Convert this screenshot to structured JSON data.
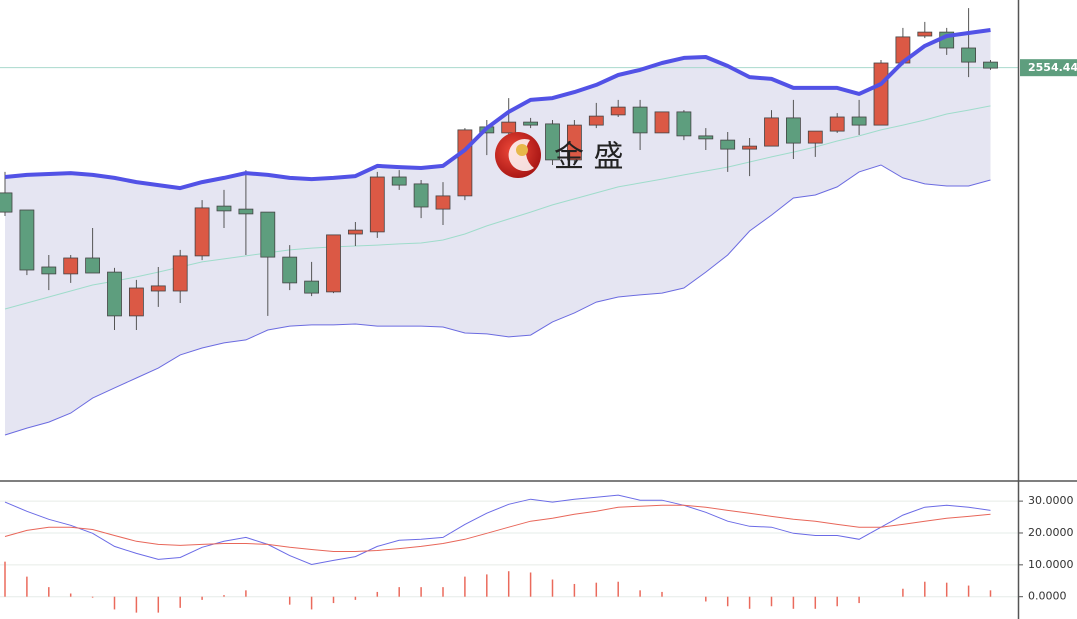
{
  "chart_data": [
    {
      "type": "candlestick",
      "open": [
        2512.7,
        2507.0,
        2488.0,
        2485.7,
        2491.0,
        2486.3,
        2471.7,
        2480.0,
        2480.0,
        2491.7,
        2508.3,
        2507.3,
        2506.3,
        2491.3,
        2483.3,
        2479.7,
        2499.0,
        2499.7,
        2518.0,
        2515.7,
        2507.3,
        2511.7,
        2534.7,
        2532.7,
        2536.3,
        2535.7,
        2523.7,
        2535.3,
        2538.7,
        2541.3,
        2532.7,
        2539.7,
        2531.7,
        2530.3,
        2527.3,
        2528.3,
        2537.7,
        2529.3,
        2533.3,
        2538.0,
        2535.3,
        2556.0,
        2565.0,
        2566.3,
        2561.0,
        2556.3
      ],
      "close": [
        2506.3,
        2487.0,
        2485.7,
        2491.0,
        2486.0,
        2471.7,
        2481.0,
        2481.7,
        2491.7,
        2507.7,
        2506.7,
        2505.7,
        2491.3,
        2482.7,
        2479.3,
        2498.7,
        2500.3,
        2518.0,
        2515.3,
        2508.0,
        2511.7,
        2533.7,
        2532.7,
        2536.3,
        2535.3,
        2523.7,
        2535.3,
        2538.3,
        2541.3,
        2532.7,
        2539.7,
        2531.7,
        2530.7,
        2527.3,
        2528.3,
        2537.7,
        2529.3,
        2533.3,
        2538.0,
        2535.3,
        2556.0,
        2564.7,
        2566.3,
        2561.0,
        2556.3,
        2554.3
      ],
      "high": [
        2519.7,
        2507.0,
        2492.0,
        2492.0,
        2501.0,
        2487.7,
        2483.7,
        2488.0,
        2493.7,
        2510.3,
        2513.7,
        2520.3,
        2506.3,
        2495.3,
        2489.7,
        2498.7,
        2503.0,
        2519.7,
        2520.3,
        2517.0,
        2516.3,
        2534.3,
        2537.0,
        2544.3,
        2537.7,
        2537.0,
        2537.0,
        2542.7,
        2543.7,
        2543.7,
        2539.7,
        2540.3,
        2534.3,
        2533.0,
        2531.0,
        2540.3,
        2543.7,
        2533.3,
        2539.3,
        2543.7,
        2557.0,
        2567.7,
        2569.7,
        2567.7,
        2574.3,
        2557.0
      ],
      "low": [
        2505.0,
        2485.3,
        2480.3,
        2482.7,
        2486.0,
        2467.0,
        2467.0,
        2474.7,
        2476.0,
        2490.3,
        2501.0,
        2492.0,
        2471.7,
        2480.3,
        2478.3,
        2479.3,
        2495.0,
        2497.7,
        2513.7,
        2504.3,
        2502.0,
        2510.3,
        2525.3,
        2530.3,
        2534.3,
        2522.0,
        2522.0,
        2534.3,
        2538.0,
        2527.0,
        2532.7,
        2530.3,
        2527.0,
        2519.7,
        2518.3,
        2528.3,
        2524.0,
        2524.7,
        2532.7,
        2532.0,
        2535.3,
        2555.3,
        2564.3,
        2558.7,
        2551.3,
        2553.7
      ],
      "upper_band": [
        2518.0,
        2518.7,
        2519.0,
        2519.3,
        2518.7,
        2517.7,
        2516.3,
        2515.3,
        2514.3,
        2516.3,
        2517.7,
        2519.3,
        2518.7,
        2517.7,
        2517.3,
        2517.7,
        2518.3,
        2521.7,
        2521.3,
        2521.0,
        2521.7,
        2527.0,
        2534.3,
        2539.7,
        2543.7,
        2544.3,
        2546.3,
        2548.7,
        2552.0,
        2553.7,
        2556.0,
        2557.7,
        2558.0,
        2555.0,
        2551.3,
        2550.7,
        2547.7,
        2547.7,
        2547.7,
        2545.7,
        2549.0,
        2556.3,
        2561.7,
        2565.0,
        2566.0,
        2567.0
      ],
      "middle_band": [
        2474.0,
        2476.0,
        2478.0,
        2480.0,
        2482.0,
        2483.3,
        2484.7,
        2486.3,
        2488.0,
        2489.7,
        2490.7,
        2491.7,
        2492.7,
        2493.7,
        2494.3,
        2494.7,
        2495.0,
        2495.3,
        2495.7,
        2496.0,
        2497.0,
        2499.0,
        2501.7,
        2504.0,
        2506.3,
        2508.7,
        2510.7,
        2512.7,
        2514.7,
        2516.0,
        2517.3,
        2518.7,
        2520.0,
        2521.3,
        2523.0,
        2524.7,
        2526.3,
        2528.0,
        2530.0,
        2531.7,
        2533.7,
        2535.3,
        2537.0,
        2539.0,
        2540.3,
        2541.7
      ],
      "lower_band": [
        2432.0,
        2434.3,
        2436.3,
        2439.3,
        2444.3,
        2447.7,
        2451.0,
        2454.3,
        2458.7,
        2461.0,
        2462.7,
        2463.7,
        2467.0,
        2468.3,
        2468.7,
        2468.7,
        2469.0,
        2468.3,
        2468.3,
        2468.3,
        2468.0,
        2466.0,
        2465.7,
        2464.7,
        2465.3,
        2469.7,
        2472.7,
        2476.3,
        2478.0,
        2478.7,
        2479.3,
        2481.0,
        2486.3,
        2492.0,
        2500.0,
        2505.3,
        2511.0,
        2512.0,
        2514.7,
        2519.7,
        2522.0,
        2517.7,
        2515.7,
        2515.0,
        2515.0,
        2517.0
      ],
      "up_color": "#db5945",
      "down_color": "#5e9e7e",
      "upper_color": "#5252e6",
      "middle_color": "#9fdccb",
      "lower_color": "#6b6be0",
      "band_fill": "#e5e5f2",
      "ylim": [
        2417,
        2577
      ],
      "price_line": {
        "value": 2554.44,
        "label": "2554.440"
      }
    },
    {
      "type": "indicator",
      "lines": [
        {
          "color": "#6b6be6",
          "values": [
            29.7,
            26.8,
            24.3,
            22.4,
            19.9,
            15.8,
            13.6,
            11.7,
            12.3,
            15.5,
            17.4,
            18.6,
            16.4,
            12.9,
            10.1,
            11.4,
            12.6,
            15.8,
            17.7,
            18.0,
            18.6,
            22.7,
            26.2,
            29.0,
            30.6,
            29.7,
            30.6,
            31.2,
            31.9,
            30.3,
            30.3,
            28.7,
            26.5,
            23.7,
            22.1,
            21.8,
            19.9,
            19.2,
            19.2,
            18.0,
            21.8,
            25.6,
            28.1,
            28.7,
            28.1,
            27.1
          ]
        },
        {
          "color": "#e8675a",
          "values": [
            18.9,
            20.8,
            21.8,
            21.8,
            21.1,
            19.2,
            17.4,
            16.4,
            16.1,
            16.4,
            16.7,
            16.7,
            16.4,
            15.5,
            14.8,
            14.2,
            14.2,
            14.5,
            15.1,
            15.8,
            16.7,
            18.0,
            19.9,
            21.8,
            23.7,
            24.6,
            25.9,
            26.8,
            28.1,
            28.4,
            28.7,
            28.7,
            28.1,
            27.1,
            26.2,
            25.2,
            24.3,
            23.7,
            22.7,
            21.8,
            21.8,
            22.7,
            23.7,
            24.6,
            25.2,
            25.9
          ]
        }
      ],
      "bars": {
        "color": "#ea6a5c",
        "values": [
          11,
          6.3,
          3,
          1,
          -0.3,
          -4,
          -5,
          -5,
          -3.5,
          -1,
          0.5,
          2,
          0,
          -2.5,
          -4,
          -2,
          -1,
          1.5,
          3,
          3,
          3,
          6.3,
          7,
          8,
          7.6,
          5.4,
          4,
          4.4,
          4.7,
          2,
          1.5,
          0,
          -1.5,
          -3,
          -3.8,
          -3,
          -3.8,
          -3.8,
          -3,
          -2,
          0,
          2.5,
          4.7,
          4.4,
          3.5,
          2
        ]
      },
      "ylim": [
        -7,
        36
      ],
      "yticks": [
        {
          "value": 0,
          "label": "0.0000"
        },
        {
          "value": 10,
          "label": "10.0000"
        },
        {
          "value": 20,
          "label": "20.0000"
        },
        {
          "value": 30,
          "label": "30.0000"
        }
      ],
      "grid": true
    }
  ],
  "watermark": "金 盛"
}
